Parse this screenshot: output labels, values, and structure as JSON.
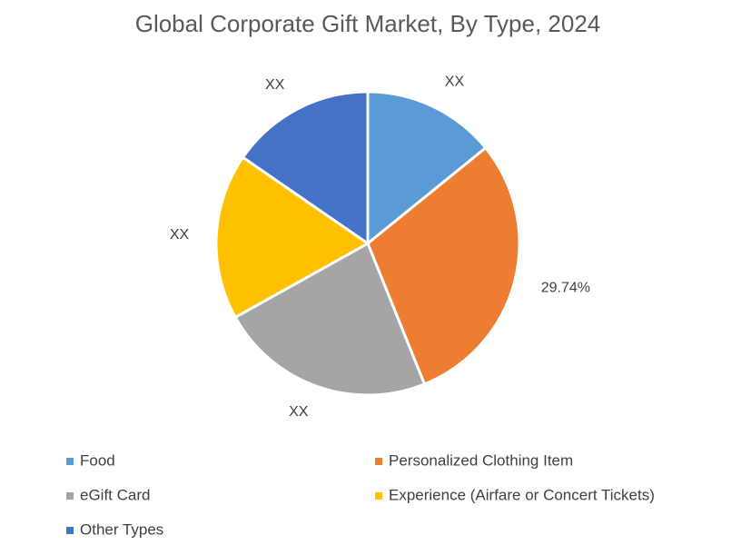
{
  "chart_data": {
    "type": "pie",
    "title": "Global Corporate Gift Market, By Type, 2024",
    "categories": [
      "Food",
      "Personalized Clothing Item",
      "eGift Card",
      "Experience (Airfare or Concert Tickets)",
      "Other Types"
    ],
    "values": [
      14.16,
      29.74,
      23.0,
      17.7,
      15.4
    ],
    "value_labels": [
      "XX",
      "29.74%",
      "XX",
      "XX",
      "XX"
    ],
    "colors": [
      "#5b9bd5",
      "#ed7d31",
      "#a5a5a5",
      "#ffc000",
      "#4472c4"
    ],
    "legend": "bottom"
  }
}
